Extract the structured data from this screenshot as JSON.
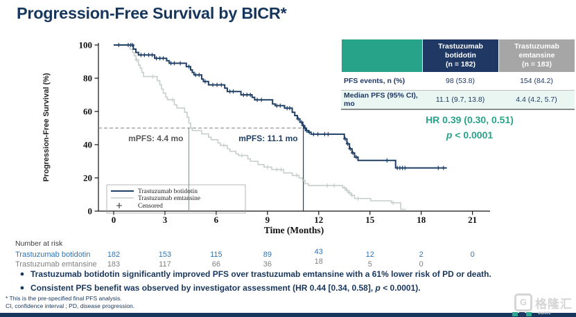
{
  "slide": {
    "title": "Progression-Free Survival by BICR*",
    "footnote1": "* This is the pre-specified final PFS analysis.",
    "footnote2": "CI, confidence interval ; PD, disease progression.",
    "watermark": {
      "logo_letter": "G",
      "logo_text": "格隆汇",
      "subtext": "conre"
    }
  },
  "bullets": {
    "b1": "Trastuzumab botidotin significantly improved PFS over trastuzumab emtansine with a 61% lower risk of PD or death.",
    "b2_pre": "Consistent PFS benefit was observed by investigator assessment (HR 0.44 [0.34, 0.58], ",
    "b2_p": "p",
    "b2_post": " < 0.0001)."
  },
  "hr_stats": {
    "line1": "HR 0.39 (0.30, 0.51)",
    "p_italic": "p",
    "p_rest": " < 0.0001"
  },
  "stats_table": {
    "col_headers": [
      {
        "lines": [
          "Trastuzumab",
          "botidotin",
          "(n = 182)"
        ]
      },
      {
        "lines": [
          "Trastuzumab",
          "emtansine",
          "(n = 183)"
        ]
      }
    ],
    "rows": [
      {
        "label": "PFS events, n (%)",
        "values": [
          "98 (53.8)",
          "154 (84.2)"
        ]
      },
      {
        "label": "Median PFS (95% CI), mo",
        "values": [
          "11.1 (9.7, 13.8)",
          "4.4 (4.2, 5.7)"
        ]
      }
    ]
  },
  "colors": {
    "title_navy": "#17365D",
    "curve_navy": "#1E3F66",
    "curve_gray": "#C6CFCA",
    "teal": "#27A389",
    "table_navy": "#1F3864",
    "table_gray": "#A6A6A6",
    "row_alt_bg": "#E9F6F2",
    "risk_blue": "#2E74B5",
    "risk_gray": "#808080",
    "ref_gray": "#8E9B94",
    "dash_gray": "#7F7F7F"
  },
  "chart_data": {
    "type": "line",
    "subtype": "kaplan-meier-step",
    "xlabel": "Time (Months)",
    "ylabel": "Progression-Free Survival (%)",
    "xlim": [
      0,
      22
    ],
    "ylim": [
      0,
      100
    ],
    "xticks": [
      0,
      3,
      6,
      9,
      12,
      15,
      18,
      21
    ],
    "yticks": [
      0,
      20,
      40,
      60,
      80,
      100
    ],
    "grid": false,
    "legend": {
      "position": "lower-left",
      "censored_label": "Censored"
    },
    "median_dash_y": 50,
    "reference_lines": [
      {
        "x": 4.4,
        "label": "mPFS: 4.4 mo",
        "color": "#595959",
        "line_color": "#8E9B94"
      },
      {
        "x": 11.1,
        "label": "mPFS: 11.1 mo",
        "color": "#1E3F66",
        "line_color": "#1E3F66"
      }
    ],
    "series": [
      {
        "name": "Trastuzumab botidotin",
        "color": "#1E3F66",
        "width": 2,
        "median_pfs_mo": 11.1,
        "steps": [
          [
            0,
            100
          ],
          [
            1.15,
            100
          ],
          [
            1.15,
            97.5
          ],
          [
            1.3,
            97.5
          ],
          [
            1.3,
            95.5
          ],
          [
            1.45,
            95.5
          ],
          [
            1.45,
            94
          ],
          [
            2.4,
            94
          ],
          [
            2.4,
            92
          ],
          [
            3.1,
            92
          ],
          [
            3.1,
            90.5
          ],
          [
            3.25,
            90.5
          ],
          [
            3.25,
            89
          ],
          [
            4.25,
            89
          ],
          [
            4.25,
            87
          ],
          [
            4.5,
            87
          ],
          [
            4.5,
            85
          ],
          [
            4.6,
            85
          ],
          [
            4.6,
            83.5
          ],
          [
            4.7,
            83.5
          ],
          [
            4.7,
            82
          ],
          [
            5.15,
            82
          ],
          [
            5.15,
            79.5
          ],
          [
            5.25,
            79.5
          ],
          [
            5.25,
            78
          ],
          [
            5.55,
            78
          ],
          [
            5.55,
            76
          ],
          [
            6.5,
            76
          ],
          [
            6.5,
            74
          ],
          [
            6.65,
            74
          ],
          [
            6.65,
            72
          ],
          [
            7.45,
            72
          ],
          [
            7.45,
            70
          ],
          [
            8.1,
            70
          ],
          [
            8.1,
            68.5
          ],
          [
            8.25,
            68.5
          ],
          [
            8.25,
            67
          ],
          [
            9.3,
            67
          ],
          [
            9.3,
            64.5
          ],
          [
            9.45,
            64.5
          ],
          [
            9.45,
            63.5
          ],
          [
            10.0,
            63.5
          ],
          [
            10.0,
            62
          ],
          [
            10.45,
            62
          ],
          [
            10.45,
            59.5
          ],
          [
            10.6,
            59.5
          ],
          [
            10.6,
            57.5
          ],
          [
            10.75,
            57.5
          ],
          [
            10.75,
            55.5
          ],
          [
            10.9,
            55.5
          ],
          [
            10.9,
            53.5
          ],
          [
            11.05,
            53.5
          ],
          [
            11.05,
            51.5
          ],
          [
            11.15,
            51.5
          ],
          [
            11.15,
            50
          ],
          [
            11.25,
            50
          ],
          [
            11.25,
            48.5
          ],
          [
            11.4,
            48.5
          ],
          [
            11.4,
            47.5
          ],
          [
            11.55,
            47.5
          ],
          [
            11.55,
            46.3
          ],
          [
            13.5,
            46.3
          ],
          [
            13.5,
            43.5
          ],
          [
            13.65,
            43.5
          ],
          [
            13.65,
            40.5
          ],
          [
            13.8,
            40.5
          ],
          [
            13.8,
            37.5
          ],
          [
            13.95,
            37.5
          ],
          [
            13.95,
            35
          ],
          [
            14.1,
            35
          ],
          [
            14.1,
            32.5
          ],
          [
            14.3,
            32.5
          ],
          [
            14.3,
            30.5
          ],
          [
            16.5,
            30.5
          ],
          [
            16.5,
            26
          ],
          [
            19.5,
            26
          ]
        ],
        "censors": [
          [
            0.3,
            100
          ],
          [
            0.85,
            100
          ],
          [
            1.0,
            100
          ],
          [
            1.1,
            100
          ],
          [
            1.6,
            94
          ],
          [
            1.8,
            94
          ],
          [
            2.05,
            94
          ],
          [
            2.25,
            94
          ],
          [
            2.5,
            92
          ],
          [
            2.7,
            92
          ],
          [
            2.9,
            92
          ],
          [
            3.35,
            89
          ],
          [
            3.55,
            89
          ],
          [
            3.9,
            89
          ],
          [
            4.4,
            87
          ],
          [
            4.8,
            82
          ],
          [
            5.0,
            82
          ],
          [
            5.35,
            78
          ],
          [
            5.8,
            76
          ],
          [
            6.05,
            76
          ],
          [
            6.3,
            76
          ],
          [
            6.8,
            72
          ],
          [
            7.0,
            72
          ],
          [
            7.6,
            70
          ],
          [
            7.8,
            70
          ],
          [
            8.0,
            70
          ],
          [
            8.4,
            67
          ],
          [
            8.65,
            67
          ],
          [
            9.55,
            63.5
          ],
          [
            9.75,
            63.5
          ],
          [
            10.15,
            62
          ],
          [
            10.3,
            62
          ],
          [
            10.8,
            55.5
          ],
          [
            11.0,
            53.5
          ],
          [
            11.1,
            51.5
          ],
          [
            11.2,
            50
          ],
          [
            11.3,
            48.5
          ],
          [
            11.45,
            47.5
          ],
          [
            11.7,
            46.3
          ],
          [
            11.95,
            46.3
          ],
          [
            12.35,
            46.3
          ],
          [
            12.55,
            46.3
          ],
          [
            13.55,
            43.5
          ],
          [
            13.7,
            40.5
          ],
          [
            13.85,
            37.5
          ],
          [
            14.0,
            35
          ],
          [
            14.2,
            32.5
          ],
          [
            16.0,
            30.5
          ],
          [
            16.6,
            26
          ],
          [
            16.75,
            26
          ],
          [
            16.9,
            26
          ],
          [
            17.05,
            26
          ],
          [
            19.0,
            26
          ],
          [
            19.3,
            26
          ]
        ]
      },
      {
        "name": "Trastuzumab emtansine",
        "color": "#C6CFCA",
        "width": 1.6,
        "median_pfs_mo": 4.4,
        "steps": [
          [
            0,
            100
          ],
          [
            0.95,
            100
          ],
          [
            0.95,
            97.5
          ],
          [
            1.1,
            97.5
          ],
          [
            1.1,
            95.5
          ],
          [
            1.2,
            95.5
          ],
          [
            1.2,
            93.5
          ],
          [
            1.3,
            93.5
          ],
          [
            1.3,
            91
          ],
          [
            1.45,
            91
          ],
          [
            1.45,
            88
          ],
          [
            1.55,
            88
          ],
          [
            1.55,
            86
          ],
          [
            1.65,
            86
          ],
          [
            1.65,
            83.5
          ],
          [
            1.75,
            83.5
          ],
          [
            1.75,
            81
          ],
          [
            2.55,
            81
          ],
          [
            2.55,
            78.5
          ],
          [
            2.7,
            78.5
          ],
          [
            2.7,
            76
          ],
          [
            2.8,
            76
          ],
          [
            2.8,
            73.5
          ],
          [
            2.9,
            73.5
          ],
          [
            2.9,
            71
          ],
          [
            3.05,
            71
          ],
          [
            3.05,
            68.5
          ],
          [
            3.15,
            68.5
          ],
          [
            3.15,
            67
          ],
          [
            3.55,
            67
          ],
          [
            3.55,
            64
          ],
          [
            3.7,
            64
          ],
          [
            3.7,
            62
          ],
          [
            4.15,
            62
          ],
          [
            4.15,
            59.5
          ],
          [
            4.3,
            59.5
          ],
          [
            4.3,
            56.5
          ],
          [
            4.4,
            56.5
          ],
          [
            4.4,
            53
          ],
          [
            4.5,
            53
          ],
          [
            4.5,
            50
          ],
          [
            4.6,
            50
          ],
          [
            4.6,
            48.5
          ],
          [
            5.15,
            48.5
          ],
          [
            5.15,
            46.5
          ],
          [
            5.55,
            46.5
          ],
          [
            5.55,
            44.5
          ],
          [
            5.7,
            44.5
          ],
          [
            5.7,
            43
          ],
          [
            6.1,
            43
          ],
          [
            6.1,
            41
          ],
          [
            6.25,
            41
          ],
          [
            6.25,
            39.5
          ],
          [
            6.65,
            39.5
          ],
          [
            6.65,
            37.5
          ],
          [
            6.8,
            37.5
          ],
          [
            6.8,
            36
          ],
          [
            7.15,
            36
          ],
          [
            7.15,
            34.5
          ],
          [
            7.3,
            34.5
          ],
          [
            7.3,
            33.5
          ],
          [
            7.85,
            33.5
          ],
          [
            7.85,
            31.5
          ],
          [
            8.0,
            31.5
          ],
          [
            8.0,
            30
          ],
          [
            8.45,
            30
          ],
          [
            8.45,
            28
          ],
          [
            8.8,
            28
          ],
          [
            8.8,
            26.5
          ],
          [
            9.25,
            26.5
          ],
          [
            9.25,
            25
          ],
          [
            9.95,
            25
          ],
          [
            9.95,
            23
          ],
          [
            10.45,
            23
          ],
          [
            10.45,
            21.5
          ],
          [
            10.85,
            21.5
          ],
          [
            10.85,
            20
          ],
          [
            11.05,
            20
          ],
          [
            11.05,
            18.5
          ],
          [
            11.2,
            18.5
          ],
          [
            11.2,
            16.5
          ],
          [
            11.4,
            16.5
          ],
          [
            11.4,
            15.4
          ],
          [
            13.4,
            15.4
          ],
          [
            13.4,
            14
          ],
          [
            13.6,
            14
          ],
          [
            13.6,
            12.5
          ],
          [
            13.75,
            12.5
          ],
          [
            13.75,
            11
          ],
          [
            13.9,
            11
          ],
          [
            13.9,
            9.5
          ],
          [
            14.1,
            9.5
          ],
          [
            14.1,
            7.6
          ],
          [
            15.05,
            7.6
          ],
          [
            15.05,
            6.2
          ],
          [
            16.25,
            6.2
          ],
          [
            16.25,
            5
          ],
          [
            16.8,
            5
          ],
          [
            16.8,
            1
          ],
          [
            17.1,
            1
          ]
        ],
        "censors": [
          [
            1.35,
            91
          ],
          [
            2.3,
            81
          ],
          [
            3.45,
            67
          ],
          [
            6.45,
            39.5
          ],
          [
            7.5,
            33.5
          ],
          [
            9.0,
            26.5
          ],
          [
            9.55,
            25
          ],
          [
            9.8,
            25
          ],
          [
            10.7,
            21.5
          ],
          [
            12.5,
            15.4
          ],
          [
            12.9,
            15.4
          ],
          [
            13.5,
            14
          ],
          [
            13.65,
            12.5
          ],
          [
            13.8,
            11
          ],
          [
            13.95,
            9.5
          ],
          [
            14.3,
            7.6
          ],
          [
            16.35,
            5
          ]
        ]
      }
    ],
    "risk_table": {
      "label": "Number at risk",
      "x_values": [
        0,
        3,
        6,
        9,
        12,
        15,
        18,
        21
      ],
      "rows": [
        {
          "name": "Trastuzumab botidotin",
          "color": "#2E74B5",
          "counts": [
            "182",
            "153",
            "115",
            "89",
            "43",
            "12",
            "2",
            "0"
          ]
        },
        {
          "name": "Trastuzumab emtansine",
          "color": "#808080",
          "counts": [
            "183",
            "117",
            "66",
            "36",
            "18",
            "5",
            "0",
            ""
          ]
        }
      ]
    }
  }
}
